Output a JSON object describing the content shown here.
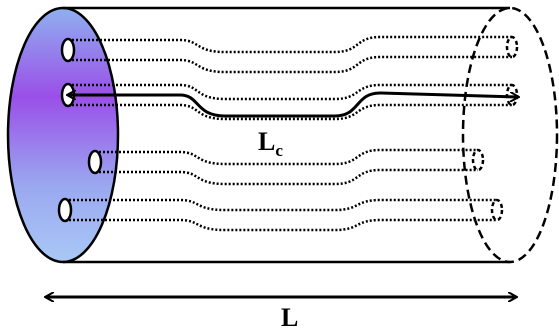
{
  "labels": {
    "path_length": {
      "main": "L",
      "sub": "c"
    },
    "length": "L"
  }
}
